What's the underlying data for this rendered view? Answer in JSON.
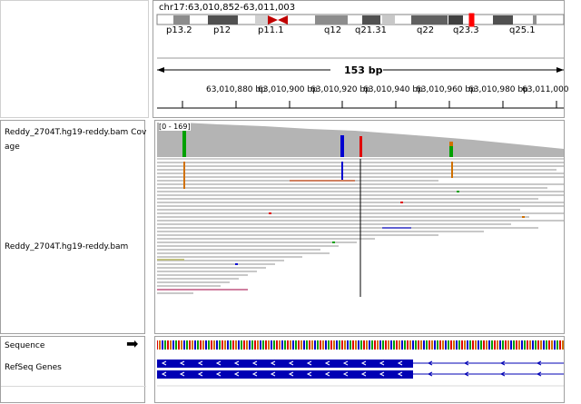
{
  "header": {
    "locus": "chr17:63,010,852-63,011,003",
    "span_label": "153 bp",
    "ideogram_bands": [
      "p13.2",
      "p12",
      "p11.1",
      "q12",
      "q21.31",
      "q22",
      "q23.3",
      "q25.1"
    ],
    "ruler_ticks": [
      "63,010,880 bp",
      "63,010,900 bp",
      "63,010,920 bp",
      "63,010,940 bp",
      "63,010,960 bp",
      "63,010,980 bp",
      "63,011,000"
    ]
  },
  "tracks": {
    "coverage_name": "Reddy_2704T.hg19-reddy.bam Cov",
    "coverage_name_suffix": "age",
    "coverage_range": "[0 - 169]",
    "alignment_name": "Reddy_2704T.hg19-reddy.bam",
    "sequence_name": "Sequence",
    "genes_name": "RefSeq Genes",
    "sequence_strand_arrow": "➡"
  },
  "colors": {
    "base_A": "#00a000",
    "base_C": "#0000d0",
    "base_G": "#d07000",
    "base_T": "#e00000",
    "coverage": "#b4b4b4",
    "read": "#c8c8c8",
    "gene": "#0000b4",
    "cytoband_centromere": "#c00000",
    "current_region": "#ff0000"
  }
}
